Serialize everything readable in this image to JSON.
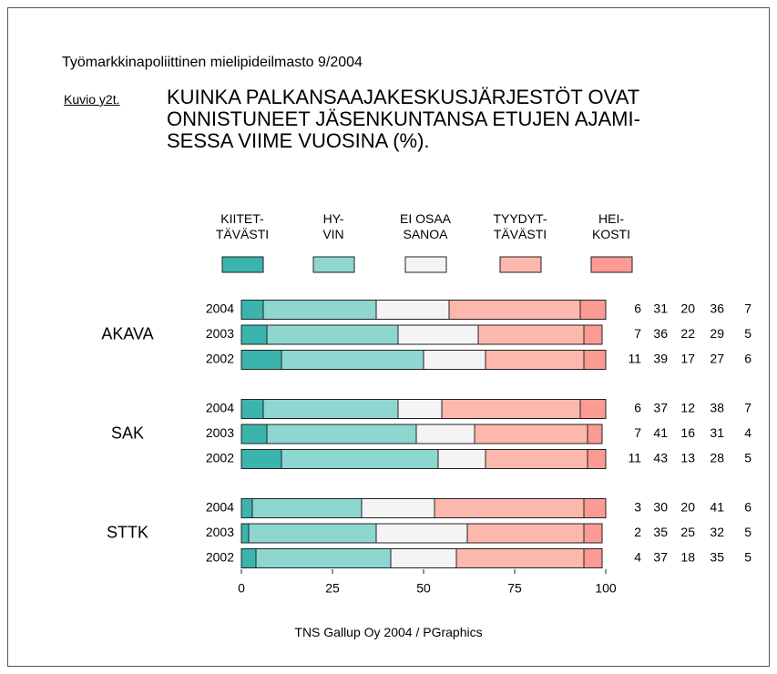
{
  "chart_data": {
    "type": "stacked-barh",
    "supertitle": "Työmarkkinapoliittinen mielipideilmasto 9/2004",
    "figure_label": "Kuvio y2t.",
    "title": "KUINKA PALKANSAAJAKESKUSJÄRJESTÖT OVAT\nONNISTUNEET JÄSENKUNTANSA ETUJEN AJAMI-\nSESSA VIIME VUOSINA (%).",
    "groups": [
      "AKAVA",
      "SAK",
      "STTK"
    ],
    "categories": [
      "2004",
      "2003",
      "2002",
      "2004",
      "2003",
      "2002",
      "2004",
      "2003",
      "2002"
    ],
    "series": [
      {
        "name": "KIITET-\nTÄVÄSTI",
        "color": "#3cb4ae",
        "values": [
          6,
          7,
          11,
          6,
          7,
          11,
          3,
          2,
          4
        ]
      },
      {
        "name": "HY-\nVIN",
        "color": "#8ed6d0",
        "values": [
          31,
          36,
          39,
          37,
          41,
          43,
          30,
          35,
          37
        ]
      },
      {
        "name": "EI OSAA\nSANOA",
        "color": "#f4f4f4",
        "values": [
          20,
          22,
          17,
          12,
          16,
          13,
          20,
          25,
          18
        ]
      },
      {
        "name": "TYYDYT-\nTÄVÄSTI",
        "color": "#fcb8ac",
        "values": [
          36,
          29,
          27,
          38,
          31,
          28,
          41,
          32,
          35
        ]
      },
      {
        "name": "HEI-\nKOSTI",
        "color": "#fc9a94",
        "values": [
          7,
          5,
          6,
          7,
          4,
          5,
          6,
          5,
          5
        ]
      }
    ],
    "xlim": [
      0,
      100
    ],
    "xticks": [
      0,
      25,
      50,
      75,
      100
    ],
    "source": "TNS Gallup Oy  2004 / PGraphics"
  }
}
